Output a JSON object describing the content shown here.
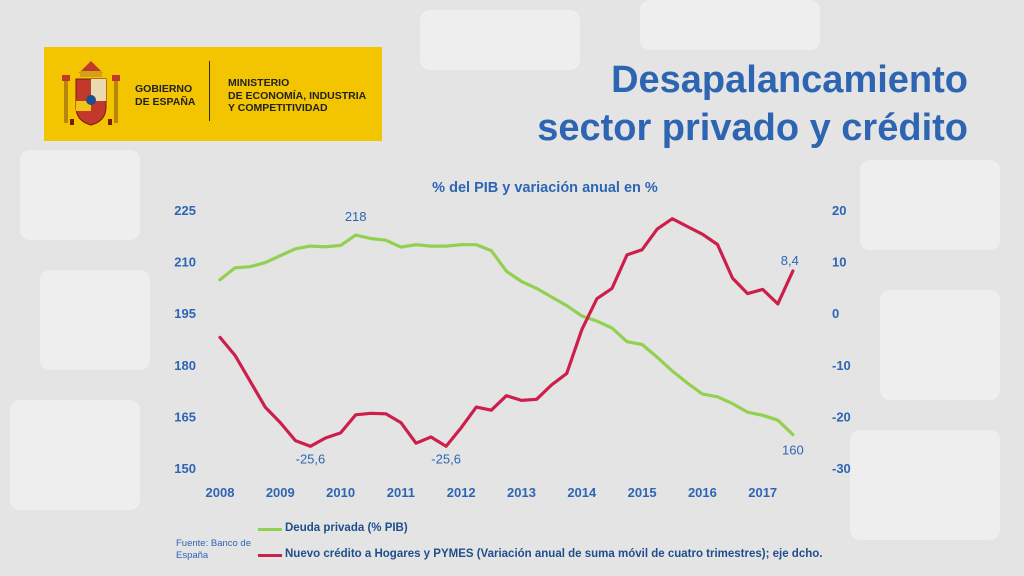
{
  "header": {
    "logo": {
      "gobierno": "GOBIERNO\nDE ESPAÑA",
      "ministerio": "MINISTERIO\nDE ECONOMÍA, INDUSTRIA\nY COMPETITIVIDAD"
    },
    "title_line1": "Desapalancamiento",
    "title_line2": "sector privado y crédito"
  },
  "source_text": "Fuente: Banco de España",
  "colors": {
    "title": "#2e65b3",
    "axis_text": "#2e65b3",
    "series_green": "#92d050",
    "series_red": "#cc1f4b",
    "logo_yellow": "#f3c400"
  },
  "chart_data": {
    "type": "line",
    "title": "% del PIB y variación anual en %",
    "x_ticks": [
      "2008",
      "2009",
      "2010",
      "2011",
      "2012",
      "2013",
      "2014",
      "2015",
      "2016",
      "2017"
    ],
    "x_range": [
      2008,
      2018
    ],
    "y_left": {
      "ticks": [
        "225",
        "210",
        "195",
        "180",
        "165",
        "150"
      ],
      "range": [
        150,
        225
      ]
    },
    "y_right": {
      "ticks": [
        "20",
        "10",
        "0",
        "-10",
        "-20",
        "-30"
      ],
      "range": [
        -30,
        20
      ]
    },
    "grid": false,
    "legend_position": "bottom",
    "series": [
      {
        "name": "Deuda privada (% PIB)",
        "axis": "left",
        "color": "#92d050",
        "x": [
          2008.0,
          2008.25,
          2008.5,
          2008.75,
          2009.0,
          2009.25,
          2009.5,
          2009.75,
          2010.0,
          2010.25,
          2010.5,
          2010.75,
          2011.0,
          2011.25,
          2011.5,
          2011.75,
          2012.0,
          2012.25,
          2012.5,
          2012.75,
          2013.0,
          2013.25,
          2013.5,
          2013.75,
          2014.0,
          2014.25,
          2014.5,
          2014.75,
          2015.0,
          2015.25,
          2015.5,
          2015.75,
          2016.0,
          2016.25,
          2016.5,
          2016.75,
          2017.0,
          2017.25,
          2017.5
        ],
        "values": [
          205,
          208.5,
          208.8,
          210,
          212,
          214,
          214.8,
          214.6,
          215,
          218,
          217,
          216.5,
          214.5,
          215.2,
          214.8,
          214.8,
          215.2,
          215.2,
          213.5,
          207.5,
          204.5,
          202.5,
          200,
          197.5,
          194.5,
          193,
          191,
          187,
          186.2,
          182.5,
          178.5,
          175,
          171.8,
          171,
          169,
          166.5,
          165.6,
          164.2,
          160
        ],
        "labels": [
          {
            "x": 2010.25,
            "value": 218,
            "text": "218"
          },
          {
            "x": 2017.5,
            "value": 160,
            "text": "160"
          }
        ]
      },
      {
        "name": "Nuevo crédito a Hogares y PYMES (Variación anual de suma móvil de cuatro trimestres); eje dcho.",
        "axis": "right",
        "color": "#cc1f4b",
        "x": [
          2008.0,
          2008.25,
          2008.5,
          2008.75,
          2009.0,
          2009.25,
          2009.5,
          2009.75,
          2010.0,
          2010.25,
          2010.5,
          2010.75,
          2011.0,
          2011.25,
          2011.5,
          2011.75,
          2012.0,
          2012.25,
          2012.5,
          2012.75,
          2013.0,
          2013.25,
          2013.5,
          2013.75,
          2014.0,
          2014.25,
          2014.5,
          2014.75,
          2015.0,
          2015.25,
          2015.5,
          2015.75,
          2016.0,
          2016.25,
          2016.5,
          2016.75,
          2017.0,
          2017.25,
          2017.5
        ],
        "values": [
          -4.5,
          -8,
          -13,
          -18,
          -21,
          -24.5,
          -25.6,
          -24,
          -23,
          -19.5,
          -19.2,
          -19.3,
          -21,
          -25,
          -23.8,
          -25.6,
          -22,
          -18,
          -18.6,
          -15.8,
          -16.7,
          -16.5,
          -13.7,
          -11.5,
          -3,
          3,
          5,
          11.5,
          12.5,
          16.5,
          18.5,
          17,
          15.5,
          13.5,
          7,
          4,
          4.8,
          2,
          8.4
        ],
        "labels": [
          {
            "x": 2009.5,
            "value": -25.6,
            "text": "-25,6"
          },
          {
            "x": 2011.75,
            "value": -25.6,
            "text": "-25,6"
          },
          {
            "x": 2017.5,
            "value": 8.4,
            "text": "8,4"
          }
        ]
      }
    ]
  }
}
